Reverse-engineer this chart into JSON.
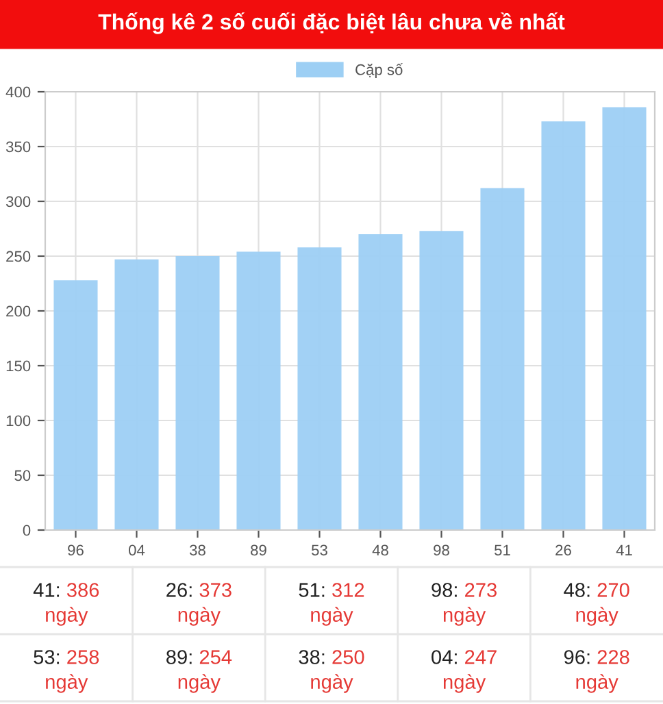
{
  "chart_data": {
    "type": "bar",
    "title": "Thống kê 2 số cuối đặc biệt lâu chưa về nhất",
    "categories": [
      "96",
      "04",
      "38",
      "89",
      "53",
      "48",
      "98",
      "51",
      "26",
      "41"
    ],
    "series": [
      {
        "name": "Cặp số",
        "color": "#9dcff4",
        "values": [
          228,
          247,
          250,
          254,
          258,
          270,
          273,
          312,
          373,
          386
        ]
      }
    ],
    "annotations": [
      "41: 386\nngày",
      "26: 373\nngày",
      "51: 312\nngày",
      "98: 273\nngày",
      "48: 270\nngày",
      "53: 258\nngày",
      "89: 254\nngày",
      "38: 250\nngày",
      "04: 247\nngày",
      "96: 228\nngày"
    ],
    "ylim": [
      0,
      400
    ],
    "yticks": [
      0,
      50,
      100,
      150,
      200,
      250,
      300,
      350,
      400
    ],
    "grid": true,
    "legend": "top"
  }
}
